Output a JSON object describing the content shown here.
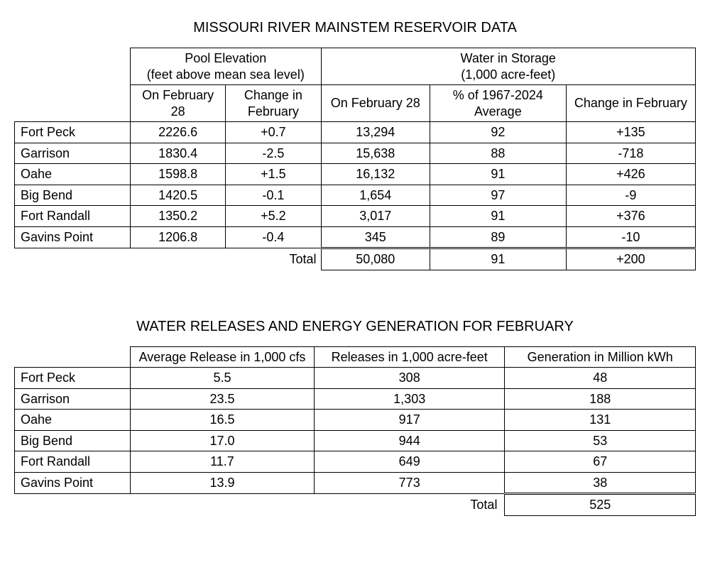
{
  "table1": {
    "title": "MISSOURI RIVER MAINSTEM RESERVOIR DATA",
    "group_headers": {
      "pool": "Pool Elevation\n(feet above mean sea level)",
      "storage": "Water in Storage\n(1,000 acre-feet)"
    },
    "columns": {
      "pe_on": "On February 28",
      "pe_chg": "Change in February",
      "ws_on": "On February 28",
      "ws_pct": "% of 1967-2024 Average",
      "ws_chg": "Change in February"
    },
    "rows": [
      {
        "name": "Fort Peck",
        "pe_on": "2226.6",
        "pe_chg": "+0.7",
        "ws_on": "13,294",
        "ws_pct": "92",
        "ws_chg": "+135"
      },
      {
        "name": "Garrison",
        "pe_on": "1830.4",
        "pe_chg": "-2.5",
        "ws_on": "15,638",
        "ws_pct": "88",
        "ws_chg": "-718"
      },
      {
        "name": "Oahe",
        "pe_on": "1598.8",
        "pe_chg": "+1.5",
        "ws_on": "16,132",
        "ws_pct": "91",
        "ws_chg": "+426"
      },
      {
        "name": "Big Bend",
        "pe_on": "1420.5",
        "pe_chg": "-0.1",
        "ws_on": "1,654",
        "ws_pct": "97",
        "ws_chg": "-9"
      },
      {
        "name": "Fort Randall",
        "pe_on": "1350.2",
        "pe_chg": "+5.2",
        "ws_on": "3,017",
        "ws_pct": "91",
        "ws_chg": "+376"
      },
      {
        "name": "Gavins Point",
        "pe_on": "1206.8",
        "pe_chg": "-0.4",
        "ws_on": "345",
        "ws_pct": "89",
        "ws_chg": "-10"
      }
    ],
    "total_label": "Total",
    "totals": {
      "ws_on": "50,080",
      "ws_pct": "91",
      "ws_chg": "+200"
    }
  },
  "table2": {
    "title": "WATER RELEASES AND ENERGY GENERATION FOR FEBRUARY",
    "columns": {
      "avg": "Average Release in 1,000 cfs",
      "rel": "Releases in 1,000 acre-feet",
      "gen": "Generation in Million kWh"
    },
    "rows": [
      {
        "name": "Fort Peck",
        "avg": "5.5",
        "rel": "308",
        "gen": "48"
      },
      {
        "name": "Garrison",
        "avg": "23.5",
        "rel": "1,303",
        "gen": "188"
      },
      {
        "name": "Oahe",
        "avg": "16.5",
        "rel": "917",
        "gen": "131"
      },
      {
        "name": "Big Bend",
        "avg": "17.0",
        "rel": "944",
        "gen": "53"
      },
      {
        "name": "Fort Randall",
        "avg": "11.7",
        "rel": "649",
        "gen": "67"
      },
      {
        "name": "Gavins Point",
        "avg": "13.9",
        "rel": "773",
        "gen": "38"
      }
    ],
    "total_label": "Total",
    "total_gen": "525"
  },
  "style": {
    "col_widths_t1": [
      "17%",
      "14%",
      "14%",
      "16%",
      "20%",
      "19%"
    ],
    "col_widths_t2": [
      "17%",
      "27%",
      "28%",
      "28%"
    ]
  }
}
